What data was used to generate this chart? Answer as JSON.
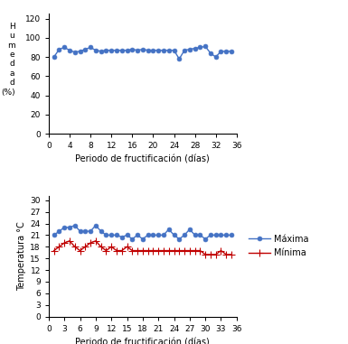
{
  "humidity_x": [
    1,
    2,
    3,
    4,
    5,
    6,
    7,
    8,
    9,
    10,
    11,
    12,
    13,
    14,
    15,
    16,
    17,
    18,
    19,
    20,
    21,
    22,
    23,
    24,
    25,
    26,
    27,
    28,
    29,
    30,
    31,
    32,
    33,
    34,
    35
  ],
  "humidity_y": [
    80,
    88,
    90,
    87,
    85,
    86,
    88,
    90,
    87,
    86,
    87,
    87,
    87,
    87,
    87,
    88,
    87,
    88,
    87,
    87,
    87,
    87,
    87,
    87,
    78,
    87,
    88,
    89,
    90,
    91,
    84,
    80,
    86,
    86,
    86
  ],
  "temp_max_x": [
    1,
    2,
    3,
    4,
    5,
    6,
    7,
    8,
    9,
    10,
    11,
    12,
    13,
    14,
    15,
    16,
    17,
    18,
    19,
    20,
    21,
    22,
    23,
    24,
    25,
    26,
    27,
    28,
    29,
    30,
    31,
    32,
    33,
    34,
    35
  ],
  "temp_max_y": [
    21,
    22,
    23,
    23,
    23.5,
    22,
    22,
    22,
    23.5,
    22,
    21,
    21,
    21,
    20.5,
    21,
    20,
    21,
    20,
    21,
    21,
    21,
    21,
    22.5,
    21,
    20,
    21,
    22.5,
    21,
    21,
    20,
    21,
    21,
    21,
    21,
    21
  ],
  "temp_min_x": [
    1,
    2,
    3,
    4,
    5,
    6,
    7,
    8,
    9,
    10,
    11,
    12,
    13,
    14,
    15,
    16,
    17,
    18,
    19,
    20,
    21,
    22,
    23,
    24,
    25,
    26,
    27,
    28,
    29,
    30,
    31,
    32,
    33,
    34,
    35
  ],
  "temp_min_y": [
    17,
    18,
    19,
    19.5,
    18,
    17,
    18,
    19,
    19.5,
    18,
    17,
    18,
    17,
    17,
    18,
    17,
    17,
    17,
    17,
    17,
    17,
    17,
    17,
    17,
    17,
    17,
    17,
    17,
    17,
    16,
    16,
    16,
    17,
    16,
    16
  ],
  "humidity_color": "#4472C4",
  "temp_max_color": "#4472C4",
  "temp_min_color": "#C00000",
  "temp_ylabel": "Temperatura °C",
  "xlabel": "Periodo de fructificación (días)",
  "humidity_yticks": [
    0,
    20,
    40,
    60,
    80,
    100,
    120
  ],
  "humidity_ylim": [
    0,
    125
  ],
  "humidity_xticks": [
    0,
    4,
    8,
    12,
    16,
    20,
    24,
    28,
    32,
    36
  ],
  "temp_yticks": [
    0,
    3,
    6,
    9,
    12,
    15,
    18,
    21,
    24,
    27,
    30
  ],
  "temp_ylim": [
    0,
    31
  ],
  "temp_xticks": [
    0,
    3,
    6,
    9,
    12,
    15,
    18,
    21,
    24,
    27,
    30,
    33,
    36
  ],
  "legend_max": "Máxima",
  "legend_min": "Mínima",
  "marker_size": 3.5,
  "line_width": 1.0,
  "tick_fontsize": 6.5,
  "label_fontsize": 7.0
}
